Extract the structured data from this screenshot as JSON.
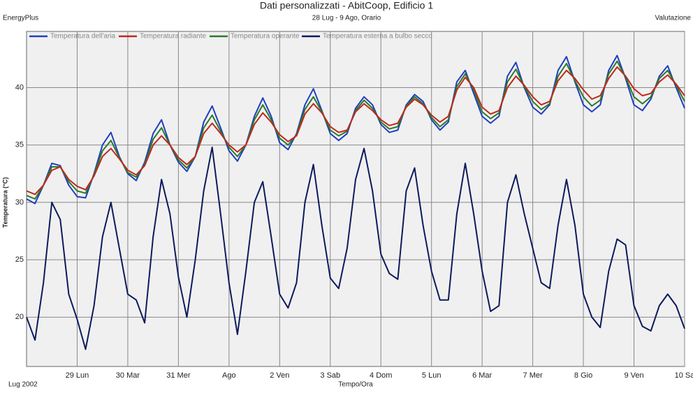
{
  "chart_data": {
    "type": "line",
    "title": "Dati personalizzati - AbitCoop, Edificio 1",
    "subtitle": "28 Lug - 9 Ago, Orario",
    "source": "EnergyPlus",
    "corner_label": "Valutazione",
    "period_label": "Lug 2002",
    "xlabel": "Tempo/Ora",
    "ylabel": "Temperatura (°C)",
    "xlim": [
      0,
      312
    ],
    "ylim": [
      15.7,
      44.9
    ],
    "yticks": [
      20,
      25,
      30,
      35,
      40
    ],
    "xticks": [
      {
        "value": 24,
        "label": "29 Lun"
      },
      {
        "value": 48,
        "label": "30 Mar"
      },
      {
        "value": 72,
        "label": "31 Mer"
      },
      {
        "value": 96,
        "label": "Ago"
      },
      {
        "value": 120,
        "label": "2 Ven"
      },
      {
        "value": 144,
        "label": "3 Sab"
      },
      {
        "value": 168,
        "label": "4 Dom"
      },
      {
        "value": 192,
        "label": "5 Lun"
      },
      {
        "value": 216,
        "label": "6 Mar"
      },
      {
        "value": 240,
        "label": "7 Mer"
      },
      {
        "value": 264,
        "label": "8 Gio"
      },
      {
        "value": 288,
        "label": "9 Ven"
      },
      {
        "value": 312,
        "label": "10 Sa"
      }
    ],
    "grid": true,
    "x": [
      0,
      4,
      8,
      12,
      16,
      20,
      24,
      28,
      32,
      36,
      40,
      44,
      48,
      52,
      56,
      60,
      64,
      68,
      72,
      76,
      80,
      84,
      88,
      92,
      96,
      100,
      104,
      108,
      112,
      116,
      120,
      124,
      128,
      132,
      136,
      140,
      144,
      148,
      152,
      156,
      160,
      164,
      168,
      172,
      176,
      180,
      184,
      188,
      192,
      196,
      200,
      204,
      208,
      212,
      216,
      220,
      224,
      228,
      232,
      236,
      240,
      244,
      248,
      252,
      256,
      260,
      264,
      268,
      272,
      276,
      280,
      284,
      288,
      292,
      296,
      300,
      304,
      308,
      312
    ],
    "series": [
      {
        "name": "Temperatura esterna a bulbo secco",
        "color": "#0d1a5c",
        "values": [
          20,
          18,
          23,
          30,
          28.5,
          22,
          19.8,
          17.2,
          21,
          27,
          30,
          26,
          22,
          21.5,
          19.5,
          27,
          32,
          29,
          23.5,
          20,
          25,
          31,
          34.8,
          29,
          23,
          18.5,
          24,
          30,
          31.8,
          27,
          22,
          20.8,
          23,
          30,
          33.3,
          28,
          23.4,
          22.5,
          26,
          32,
          34.7,
          31,
          25.5,
          23.8,
          23.3,
          31,
          33,
          28,
          24,
          21.5,
          21.5,
          29,
          33.4,
          29,
          24,
          20.5,
          21,
          30,
          32.4,
          29,
          26,
          23,
          22.5,
          28,
          32,
          28,
          22,
          20,
          19.1,
          24,
          26.8,
          26.3,
          21,
          19.2,
          18.8,
          21,
          22,
          21,
          19
        ]
      },
      {
        "name": "Temperatura dell'aria",
        "color": "#1f3fbf",
        "values": [
          30.3,
          29.9,
          31.5,
          33.4,
          33.2,
          31.5,
          30.5,
          30.4,
          32.5,
          35.0,
          36.1,
          34.0,
          32.5,
          31.9,
          33.5,
          36.0,
          37.2,
          35.0,
          33.5,
          32.7,
          34.0,
          37.0,
          38.4,
          36.5,
          34.5,
          33.6,
          35.0,
          37.5,
          39.1,
          37.5,
          35.2,
          34.6,
          36.0,
          38.5,
          39.9,
          38.0,
          36.0,
          35.4,
          36.0,
          38.2,
          39.2,
          38.5,
          36.8,
          36.1,
          36.3,
          38.5,
          39.4,
          38.8,
          37.2,
          36.3,
          37.0,
          40.5,
          41.5,
          39.5,
          37.5,
          36.9,
          37.5,
          41.0,
          42.2,
          40.0,
          38.3,
          37.7,
          38.5,
          41.5,
          42.7,
          40.5,
          38.5,
          37.9,
          38.5,
          41.5,
          42.8,
          40.8,
          38.5,
          38.0,
          39.0,
          41.0,
          41.9,
          40.0,
          38.2
        ]
      },
      {
        "name": "Temperatura operante",
        "color": "#2a7a2a",
        "values": [
          30.6,
          30.3,
          31.5,
          33.1,
          33.1,
          31.8,
          31.0,
          30.8,
          32.4,
          34.5,
          35.4,
          33.9,
          32.6,
          32.2,
          33.3,
          35.5,
          36.5,
          35.0,
          33.7,
          33.0,
          34.0,
          36.5,
          37.6,
          36.2,
          34.8,
          34.0,
          35.0,
          37.2,
          38.5,
          37.2,
          35.6,
          35.0,
          35.9,
          38.1,
          39.2,
          37.9,
          36.3,
          35.8,
          36.2,
          38.0,
          38.9,
          38.2,
          37.0,
          36.4,
          36.6,
          38.4,
          39.2,
          38.6,
          37.4,
          36.6,
          37.2,
          40.1,
          41.2,
          39.8,
          37.9,
          37.3,
          37.8,
          40.5,
          41.6,
          40.1,
          38.8,
          38.1,
          38.6,
          41.0,
          42.1,
          40.6,
          39.2,
          38.4,
          38.9,
          41.2,
          42.3,
          40.9,
          39.2,
          38.6,
          39.2,
          40.8,
          41.5,
          40.2,
          38.8
        ]
      },
      {
        "name": "Temperatura radiante",
        "color": "#c0281c",
        "values": [
          31.0,
          30.7,
          31.5,
          32.8,
          33.1,
          32.0,
          31.4,
          31.1,
          32.3,
          34.0,
          34.7,
          33.8,
          32.8,
          32.4,
          33.2,
          35.0,
          35.8,
          35.0,
          33.9,
          33.3,
          34.0,
          36.0,
          36.9,
          36.0,
          35.0,
          34.4,
          35.0,
          36.8,
          37.8,
          37.0,
          35.9,
          35.3,
          35.8,
          37.7,
          38.6,
          37.8,
          36.6,
          36.1,
          36.3,
          37.9,
          38.6,
          38.0,
          37.2,
          36.7,
          36.9,
          38.3,
          39.0,
          38.5,
          37.6,
          37.0,
          37.5,
          39.8,
          40.9,
          40.0,
          38.3,
          37.7,
          38.0,
          40.0,
          41.0,
          40.2,
          39.2,
          38.5,
          38.8,
          40.6,
          41.5,
          40.8,
          39.8,
          39.0,
          39.3,
          40.8,
          41.8,
          41.0,
          39.9,
          39.3,
          39.5,
          40.5,
          41.1,
          40.3,
          39.3
        ]
      }
    ],
    "legend_order": [
      1,
      3,
      2,
      0
    ]
  }
}
